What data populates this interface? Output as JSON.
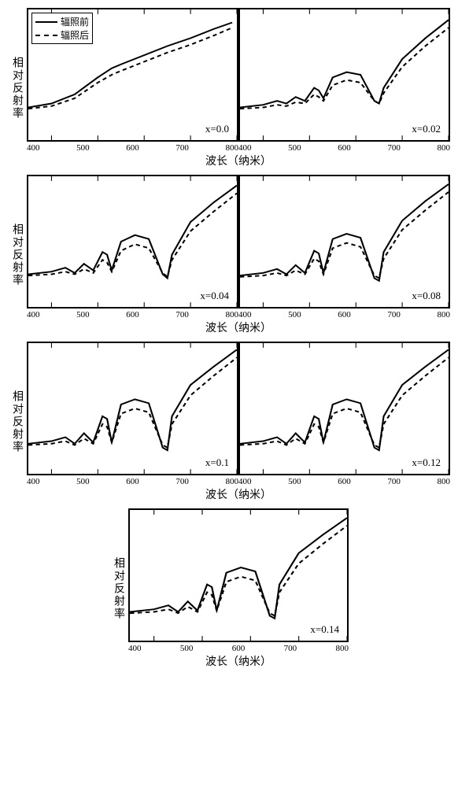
{
  "global": {
    "ylabel": "相对反射率",
    "xlabel": "波长（纳米）",
    "legend_before": "辐照前",
    "legend_after": "辐照后",
    "line_color": "#000000",
    "dash_color": "#000000",
    "line_width": 2,
    "xlim": [
      350,
      800
    ],
    "ylim": [
      0,
      100
    ],
    "xticks": [
      "400",
      "500",
      "600",
      "700",
      "800"
    ],
    "background_color": "#ffffff",
    "border_color": "#000000"
  },
  "rows": [
    {
      "panels": [
        {
          "param": "x=0.0",
          "show_legend": true,
          "solid": [
            [
              350,
              25
            ],
            [
              400,
              28
            ],
            [
              450,
              35
            ],
            [
              500,
              48
            ],
            [
              530,
              55
            ],
            [
              550,
              58
            ],
            [
              600,
              65
            ],
            [
              650,
              72
            ],
            [
              700,
              78
            ],
            [
              750,
              85
            ],
            [
              790,
              90
            ]
          ],
          "dashed": [
            [
              350,
              24
            ],
            [
              400,
              26
            ],
            [
              450,
              32
            ],
            [
              500,
              44
            ],
            [
              530,
              50
            ],
            [
              550,
              53
            ],
            [
              600,
              60
            ],
            [
              650,
              67
            ],
            [
              700,
              73
            ],
            [
              750,
              80
            ],
            [
              790,
              86
            ]
          ]
        },
        {
          "param": "x=0.02",
          "solid": [
            [
              350,
              25
            ],
            [
              400,
              27
            ],
            [
              430,
              30
            ],
            [
              450,
              28
            ],
            [
              470,
              33
            ],
            [
              490,
              30
            ],
            [
              510,
              40
            ],
            [
              520,
              38
            ],
            [
              530,
              32
            ],
            [
              550,
              48
            ],
            [
              580,
              52
            ],
            [
              610,
              50
            ],
            [
              640,
              30
            ],
            [
              650,
              28
            ],
            [
              660,
              40
            ],
            [
              700,
              62
            ],
            [
              750,
              78
            ],
            [
              800,
              92
            ]
          ],
          "dashed": [
            [
              350,
              24
            ],
            [
              400,
              25
            ],
            [
              430,
              27
            ],
            [
              450,
              26
            ],
            [
              470,
              29
            ],
            [
              490,
              28
            ],
            [
              510,
              35
            ],
            [
              520,
              33
            ],
            [
              530,
              30
            ],
            [
              550,
              42
            ],
            [
              580,
              46
            ],
            [
              610,
              44
            ],
            [
              640,
              30
            ],
            [
              650,
              28
            ],
            [
              660,
              36
            ],
            [
              700,
              56
            ],
            [
              750,
              72
            ],
            [
              800,
              86
            ]
          ]
        }
      ]
    },
    {
      "panels": [
        {
          "param": "x=0.04",
          "solid": [
            [
              350,
              25
            ],
            [
              400,
              27
            ],
            [
              430,
              30
            ],
            [
              450,
              26
            ],
            [
              470,
              33
            ],
            [
              490,
              28
            ],
            [
              510,
              42
            ],
            [
              520,
              40
            ],
            [
              530,
              28
            ],
            [
              550,
              50
            ],
            [
              580,
              55
            ],
            [
              610,
              52
            ],
            [
              640,
              25
            ],
            [
              650,
              22
            ],
            [
              660,
              40
            ],
            [
              700,
              65
            ],
            [
              750,
              80
            ],
            [
              800,
              93
            ]
          ],
          "dashed": [
            [
              350,
              24
            ],
            [
              400,
              25
            ],
            [
              430,
              27
            ],
            [
              450,
              25
            ],
            [
              470,
              29
            ],
            [
              490,
              26
            ],
            [
              510,
              36
            ],
            [
              520,
              34
            ],
            [
              530,
              27
            ],
            [
              550,
              43
            ],
            [
              580,
              48
            ],
            [
              610,
              45
            ],
            [
              640,
              26
            ],
            [
              650,
              23
            ],
            [
              660,
              36
            ],
            [
              700,
              58
            ],
            [
              750,
              73
            ],
            [
              800,
              87
            ]
          ]
        },
        {
          "param": "x=0.08",
          "solid": [
            [
              350,
              24
            ],
            [
              400,
              26
            ],
            [
              430,
              29
            ],
            [
              450,
              25
            ],
            [
              470,
              32
            ],
            [
              490,
              26
            ],
            [
              510,
              43
            ],
            [
              520,
              41
            ],
            [
              530,
              26
            ],
            [
              550,
              52
            ],
            [
              580,
              56
            ],
            [
              610,
              53
            ],
            [
              640,
              22
            ],
            [
              650,
              20
            ],
            [
              660,
              42
            ],
            [
              700,
              66
            ],
            [
              750,
              81
            ],
            [
              800,
              94
            ]
          ],
          "dashed": [
            [
              350,
              23
            ],
            [
              400,
              24
            ],
            [
              430,
              26
            ],
            [
              450,
              24
            ],
            [
              470,
              28
            ],
            [
              490,
              25
            ],
            [
              510,
              37
            ],
            [
              520,
              35
            ],
            [
              530,
              25
            ],
            [
              550,
              45
            ],
            [
              580,
              49
            ],
            [
              610,
              46
            ],
            [
              640,
              24
            ],
            [
              650,
              22
            ],
            [
              660,
              37
            ],
            [
              700,
              59
            ],
            [
              750,
              74
            ],
            [
              800,
              88
            ]
          ]
        }
      ]
    },
    {
      "panels": [
        {
          "param": "x=0.1",
          "solid": [
            [
              350,
              23
            ],
            [
              400,
              25
            ],
            [
              430,
              28
            ],
            [
              450,
              23
            ],
            [
              470,
              31
            ],
            [
              490,
              24
            ],
            [
              510,
              44
            ],
            [
              520,
              42
            ],
            [
              530,
              24
            ],
            [
              550,
              53
            ],
            [
              580,
              57
            ],
            [
              610,
              54
            ],
            [
              640,
              20
            ],
            [
              650,
              18
            ],
            [
              660,
              44
            ],
            [
              700,
              68
            ],
            [
              750,
              82
            ],
            [
              800,
              95
            ]
          ],
          "dashed": [
            [
              350,
              22
            ],
            [
              400,
              23
            ],
            [
              430,
              25
            ],
            [
              450,
              22
            ],
            [
              470,
              27
            ],
            [
              490,
              23
            ],
            [
              510,
              38
            ],
            [
              520,
              36
            ],
            [
              530,
              24
            ],
            [
              550,
              46
            ],
            [
              580,
              50
            ],
            [
              610,
              47
            ],
            [
              640,
              22
            ],
            [
              650,
              20
            ],
            [
              660,
              38
            ],
            [
              700,
              60
            ],
            [
              750,
              75
            ],
            [
              800,
              89
            ]
          ]
        },
        {
          "param": "x=0.12",
          "solid": [
            [
              350,
              23
            ],
            [
              400,
              25
            ],
            [
              430,
              28
            ],
            [
              450,
              23
            ],
            [
              470,
              31
            ],
            [
              490,
              24
            ],
            [
              510,
              44
            ],
            [
              520,
              42
            ],
            [
              530,
              24
            ],
            [
              550,
              53
            ],
            [
              580,
              57
            ],
            [
              610,
              54
            ],
            [
              640,
              20
            ],
            [
              650,
              18
            ],
            [
              660,
              44
            ],
            [
              700,
              68
            ],
            [
              750,
              82
            ],
            [
              800,
              95
            ]
          ],
          "dashed": [
            [
              350,
              22
            ],
            [
              400,
              23
            ],
            [
              430,
              25
            ],
            [
              450,
              22
            ],
            [
              470,
              27
            ],
            [
              490,
              23
            ],
            [
              510,
              38
            ],
            [
              520,
              36
            ],
            [
              530,
              24
            ],
            [
              550,
              46
            ],
            [
              580,
              50
            ],
            [
              610,
              47
            ],
            [
              640,
              22
            ],
            [
              650,
              20
            ],
            [
              660,
              38
            ],
            [
              700,
              60
            ],
            [
              750,
              75
            ],
            [
              800,
              89
            ]
          ]
        }
      ]
    },
    {
      "single": true,
      "panels": [
        {
          "param": "x=0.14",
          "solid": [
            [
              350,
              22
            ],
            [
              400,
              24
            ],
            [
              430,
              27
            ],
            [
              450,
              22
            ],
            [
              470,
              30
            ],
            [
              490,
              23
            ],
            [
              510,
              43
            ],
            [
              520,
              41
            ],
            [
              530,
              23
            ],
            [
              550,
              52
            ],
            [
              580,
              56
            ],
            [
              610,
              53
            ],
            [
              640,
              19
            ],
            [
              650,
              17
            ],
            [
              660,
              43
            ],
            [
              700,
              67
            ],
            [
              750,
              81
            ],
            [
              800,
              94
            ]
          ],
          "dashed": [
            [
              350,
              21
            ],
            [
              400,
              22
            ],
            [
              430,
              24
            ],
            [
              450,
              21
            ],
            [
              470,
              26
            ],
            [
              490,
              22
            ],
            [
              510,
              37
            ],
            [
              520,
              35
            ],
            [
              530,
              23
            ],
            [
              550,
              45
            ],
            [
              580,
              49
            ],
            [
              610,
              46
            ],
            [
              640,
              21
            ],
            [
              650,
              19
            ],
            [
              660,
              37
            ],
            [
              700,
              59
            ],
            [
              750,
              74
            ],
            [
              800,
              88
            ]
          ]
        }
      ]
    }
  ]
}
